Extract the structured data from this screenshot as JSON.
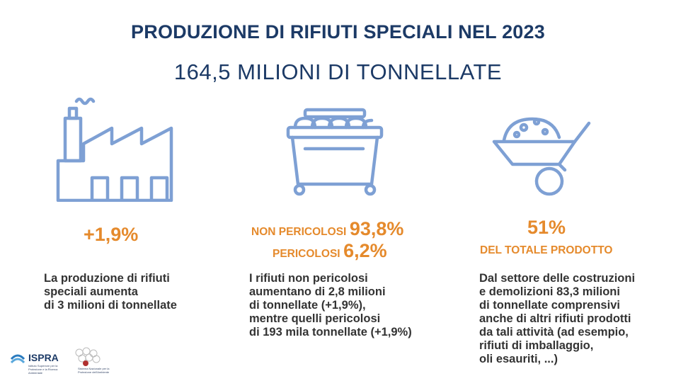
{
  "header": {
    "title": "PRODUZIONE DI RIFIUTI SPECIALI NEL 2023",
    "subtitle": "164,5 MILIONI DI TONNELLATE"
  },
  "colors": {
    "navy": "#1c3a66",
    "orange": "#e58a2c",
    "icon_blue": "#7ea0d4"
  },
  "columns": [
    {
      "icon": "factory-icon",
      "stat": "+1,9%",
      "text": "La produzione di rifiuti\nspeciali aumenta\ndi 3 milioni di tonnellate"
    },
    {
      "icon": "dumpster-icon",
      "non_pericolosi_label": "NON PERICOLOSI",
      "non_pericolosi_value": "93,8%",
      "pericolosi_label": "PERICOLOSI",
      "pericolosi_value": "6,2%",
      "text": "I rifiuti non pericolosi\naumentano di 2,8 milioni\ndi tonnellate (+1,9%),\nmentre quelli pericolosi\ndi 193 mila tonnellate (+1,9%)"
    },
    {
      "icon": "wheelbarrow-icon",
      "stat": "51%",
      "stat_label": "DEL TOTALE PRODOTTO",
      "text": "Dal settore delle costruzioni\ne demolizioni 83,3 milioni\ndi tonnellate comprensivi\nanche di altri rifiuti prodotti\nda tali attività (ad esempio,\nrifiuti di imballaggio,\noli esauriti, ...)"
    }
  ],
  "footer": {
    "ispra_name": "ISPRA",
    "ispra_sub": "Istituto Superiore per la Protezione e la Ricerca Ambientale",
    "snpa_sub": "Sistema Nazionale per la Protezione dell'Ambiente"
  }
}
